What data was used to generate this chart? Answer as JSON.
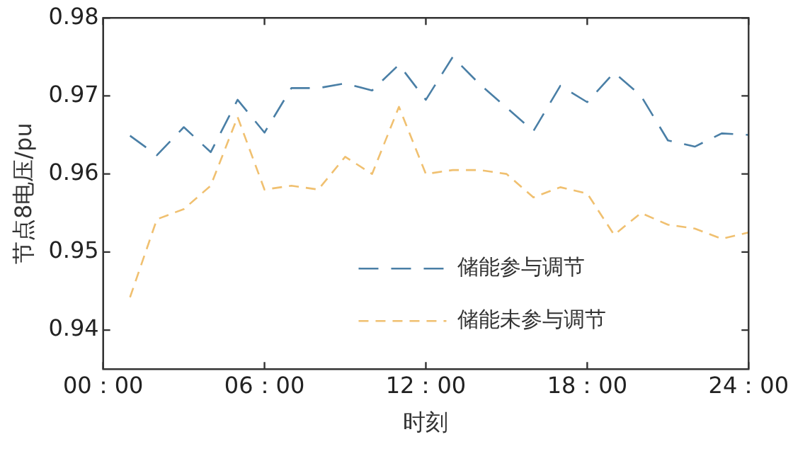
{
  "chart_data": {
    "type": "line",
    "xlabel": "时刻",
    "ylabel": "节点8电压/pu",
    "categories": [
      "00：00",
      null,
      null,
      null,
      null,
      null,
      "06：00",
      null,
      null,
      null,
      null,
      null,
      "12：00",
      null,
      null,
      null,
      null,
      null,
      "18：00",
      null,
      null,
      null,
      null,
      null,
      "24：00"
    ],
    "ylim": [
      0.935,
      0.98
    ],
    "yticks": [
      0.94,
      0.95,
      0.96,
      0.97,
      0.98
    ],
    "grid": false,
    "legend": "bottom",
    "marker": "none",
    "line_style": "dashed",
    "series": [
      {
        "name": "储能参与调节",
        "color": "#4a7fa6",
        "values": [
          null,
          0.9649,
          0.9624,
          0.966,
          0.9628,
          0.9695,
          0.9653,
          0.971,
          0.971,
          0.9716,
          0.9707,
          0.974,
          0.9695,
          0.975,
          0.9715,
          0.9685,
          0.9655,
          0.9713,
          0.9692,
          0.973,
          0.97,
          0.9643,
          0.9635,
          0.9652,
          0.965
        ]
      },
      {
        "name": "储能未参与调节",
        "color": "#f0c070",
        "values": [
          null,
          0.9442,
          0.9542,
          0.9555,
          0.9585,
          0.9673,
          0.958,
          0.9585,
          0.958,
          0.9622,
          0.96,
          0.9686,
          0.96,
          0.9605,
          0.9605,
          0.96,
          0.957,
          0.9583,
          0.9575,
          0.9522,
          0.955,
          0.9535,
          0.953,
          0.9517,
          0.9525
        ]
      }
    ]
  }
}
